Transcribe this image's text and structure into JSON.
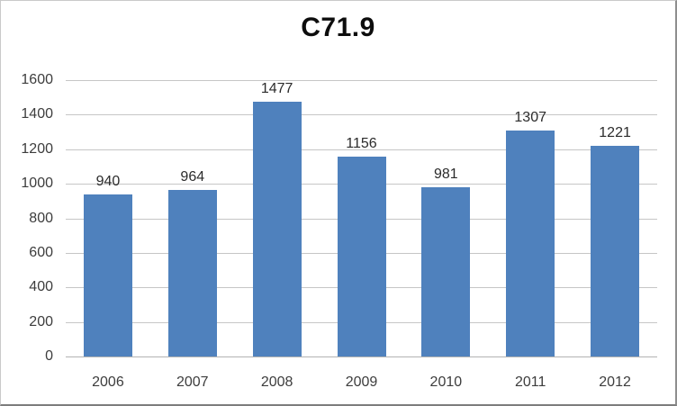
{
  "chart_data": {
    "type": "bar",
    "title": "C71.9",
    "categories": [
      "2006",
      "2007",
      "2008",
      "2009",
      "2010",
      "2011",
      "2012"
    ],
    "values": [
      940,
      964,
      1477,
      1156,
      981,
      1307,
      1221
    ],
    "xlabel": "",
    "ylabel": "",
    "ylim": [
      0,
      1600
    ],
    "yticks": [
      0,
      200,
      400,
      600,
      800,
      1000,
      1200,
      1400,
      1600
    ],
    "grid": "horizontal",
    "legend": "none",
    "data_labels": true,
    "colors": {
      "bar": "#4f81bd",
      "gridline": "#c6c6c6",
      "axis_line": "#b3b3b3",
      "tick_label": "#3d3d3d",
      "data_label": "#2b2b2b",
      "title": "#0d0d0d",
      "background": "#ffffff"
    }
  }
}
